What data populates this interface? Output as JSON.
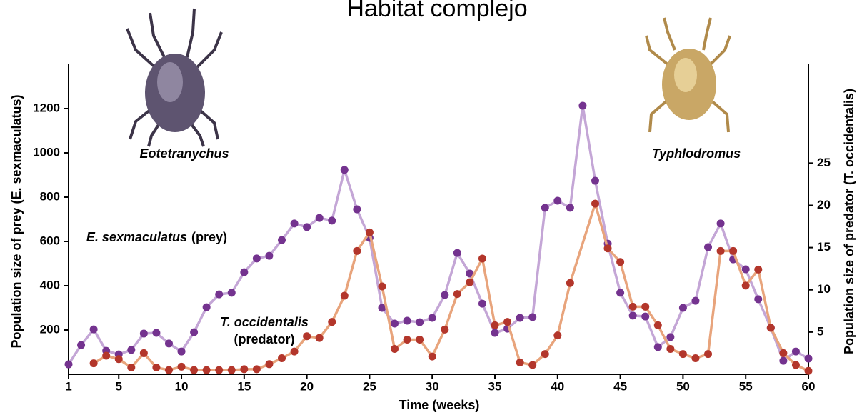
{
  "chart_data": {
    "type": "line",
    "title": "Habitat complejo",
    "x_label": "Time (weeks)",
    "y_label": "Population size of prey (E. sexmaculatus)",
    "y2_label": "Population size of predator (T. occidentalis)",
    "xlim": [
      1,
      60
    ],
    "xticks": [
      1,
      5,
      10,
      15,
      20,
      25,
      30,
      35,
      40,
      45,
      50,
      55,
      60
    ],
    "ylim": [
      0,
      1400
    ],
    "yticks": [
      200,
      400,
      600,
      800,
      1000,
      1200
    ],
    "y2lim": [
      0,
      36.7
    ],
    "y2ticks": [
      5,
      10,
      15,
      20,
      25
    ],
    "annotations": [
      "Eotetranychus",
      "Typhlodromus",
      "E. sexmaculatus",
      "(prey)",
      "T. occidentalis",
      "(predator)"
    ],
    "series": [
      {
        "name": "E. sexmaculatus (prey)",
        "color": "#c4a6d6",
        "marker_color": "#74338f",
        "x": [
          1,
          2,
          3,
          4,
          5,
          6,
          7,
          8,
          9,
          10,
          11,
          12,
          13,
          14,
          15,
          16,
          17,
          18,
          19,
          20,
          21,
          22,
          23,
          24,
          25,
          26,
          27,
          28,
          29,
          30,
          31,
          32,
          33,
          34,
          35,
          36,
          37,
          38,
          39,
          40,
          41,
          42,
          43,
          44,
          45,
          46,
          47,
          48,
          49,
          50,
          51,
          52,
          53,
          54,
          55,
          56,
          57,
          58,
          59,
          60
        ],
        "values": [
          45,
          132,
          203,
          106,
          90,
          110,
          184,
          187,
          139,
          103,
          190,
          303,
          361,
          368,
          461,
          523,
          535,
          606,
          681,
          665,
          706,
          694,
          923,
          745,
          616,
          300,
          229,
          242,
          235,
          255,
          358,
          548,
          455,
          319,
          187,
          206,
          255,
          258,
          752,
          784,
          752,
          1213,
          874,
          590,
          368,
          265,
          261,
          123,
          168,
          300,
          332,
          574,
          681,
          519,
          474,
          339,
          210,
          61,
          103,
          71
        ]
      },
      {
        "name": "T. occidentalis (predator)",
        "color": "#e8a47c",
        "marker_color": "#b3362b",
        "axis": "y2",
        "x": [
          3,
          4,
          5,
          6,
          7,
          8,
          9,
          10,
          11,
          12,
          13,
          14,
          15,
          16,
          17,
          18,
          19,
          20,
          21,
          22,
          23,
          24,
          25,
          26,
          27,
          28,
          29,
          30,
          31,
          32,
          33,
          34,
          35,
          36,
          37,
          38,
          39,
          40,
          41,
          43,
          44,
          45,
          46,
          47,
          48,
          49,
          50,
          51,
          52,
          53,
          54,
          55,
          56,
          57,
          58,
          59,
          60
        ],
        "values": [
          1.3,
          2.2,
          1.8,
          0.8,
          2.5,
          0.8,
          0.5,
          0.9,
          0.5,
          0.5,
          0.5,
          0.5,
          0.6,
          0.6,
          1.2,
          1.9,
          2.7,
          4.5,
          4.3,
          6.2,
          9.3,
          14.6,
          16.8,
          10.4,
          3.0,
          4.1,
          4.1,
          2.1,
          5.3,
          9.5,
          10.9,
          13.7,
          5.8,
          6.2,
          1.4,
          1.1,
          2.4,
          4.6,
          10.8,
          20.2,
          14.9,
          13.3,
          8.0,
          8.0,
          5.8,
          3.0,
          2.4,
          1.9,
          2.4,
          14.6,
          14.6,
          10.5,
          12.4,
          5.5,
          2.5,
          1.1,
          0.4
        ]
      }
    ]
  }
}
